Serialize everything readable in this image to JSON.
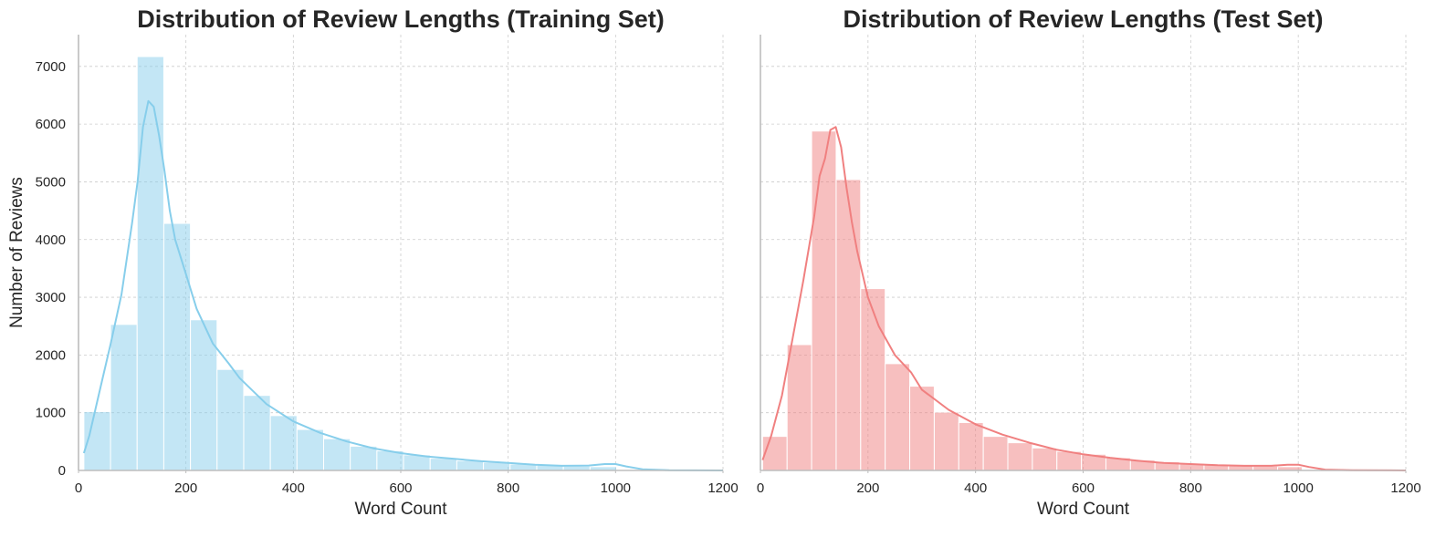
{
  "figure": {
    "panels": [
      {
        "title": "Distribution of Review Lengths (Training Set)",
        "xlabel": "Word Count",
        "ylabel": "Number of Reviews"
      },
      {
        "title": "Distribution of Review Lengths (Test Set)",
        "xlabel": "Word Count",
        "ylabel": ""
      }
    ]
  },
  "chart_data": [
    {
      "type": "bar",
      "subtype": "histogram-with-kde",
      "title": "Distribution of Review Lengths (Training Set)",
      "xlabel": "Word Count",
      "ylabel": "Number of Reviews",
      "xlim": [
        0,
        1200
      ],
      "ylim": [
        0,
        7550
      ],
      "xticks": [
        0,
        200,
        400,
        600,
        800,
        1000,
        1200
      ],
      "yticks": [
        0,
        1000,
        2000,
        3000,
        4000,
        5000,
        6000,
        7000
      ],
      "grid": true,
      "color": "#87ceeb",
      "bin_edges": [
        10,
        59.6,
        109.2,
        158.8,
        208.4,
        258,
        307.6,
        357.2,
        406.8,
        456.4,
        506,
        555.6,
        605.2,
        654.8,
        704.4,
        754,
        803.6,
        853.2,
        902.8,
        952.4,
        1002
      ],
      "values": [
        1020,
        2530,
        7170,
        4280,
        2610,
        1750,
        1300,
        950,
        710,
        550,
        420,
        340,
        270,
        210,
        170,
        140,
        110,
        90,
        75,
        65
      ],
      "kde": {
        "x": [
          10,
          20,
          40,
          60,
          80,
          100,
          110,
          120,
          130,
          140,
          150,
          160,
          170,
          180,
          190,
          200,
          220,
          250,
          280,
          300,
          350,
          400,
          450,
          500,
          550,
          600,
          650,
          700,
          750,
          800,
          850,
          900,
          950,
          980,
          1000,
          1020,
          1050,
          1100,
          1200
        ],
        "y": [
          300,
          600,
          1400,
          2200,
          3050,
          4300,
          5000,
          5950,
          6400,
          6300,
          5800,
          5200,
          4500,
          4000,
          3700,
          3400,
          2800,
          2200,
          1850,
          1600,
          1150,
          850,
          650,
          500,
          380,
          300,
          240,
          200,
          160,
          130,
          100,
          80,
          85,
          110,
          110,
          70,
          20,
          5,
          0
        ]
      }
    },
    {
      "type": "bar",
      "subtype": "histogram-with-kde",
      "title": "Distribution of Review Lengths (Test Set)",
      "xlabel": "Word Count",
      "ylabel": "",
      "xlim": [
        0,
        1200
      ],
      "ylim": [
        0,
        7550
      ],
      "xticks": [
        0,
        200,
        400,
        600,
        800,
        1000,
        1200
      ],
      "yticks": [
        0,
        1000,
        2000,
        3000,
        4000,
        5000,
        6000,
        7000
      ],
      "grid": true,
      "color": "#f08080",
      "bin_edges": [
        4,
        49.6,
        95.2,
        140.8,
        186.4,
        232,
        277.6,
        323.2,
        368.8,
        414.4,
        460,
        505.6,
        551.2,
        596.8,
        642.4,
        688,
        733.6,
        779.2,
        824.8,
        870.4,
        916,
        961.6,
        1007.2
      ],
      "values": [
        590,
        2180,
        5880,
        5040,
        3150,
        1850,
        1460,
        1010,
        830,
        590,
        480,
        390,
        330,
        280,
        220,
        180,
        150,
        120,
        100,
        85,
        75,
        65
      ],
      "kde": {
        "x": [
          4,
          20,
          40,
          60,
          80,
          100,
          110,
          120,
          130,
          140,
          150,
          160,
          170,
          180,
          190,
          200,
          220,
          250,
          280,
          300,
          350,
          400,
          450,
          500,
          550,
          600,
          650,
          700,
          750,
          800,
          850,
          900,
          950,
          980,
          1000,
          1020,
          1050,
          1100,
          1200
        ],
        "y": [
          180,
          600,
          1300,
          2300,
          3300,
          4400,
          5100,
          5400,
          5900,
          5950,
          5600,
          4900,
          4300,
          3800,
          3400,
          3000,
          2500,
          2000,
          1700,
          1400,
          1050,
          800,
          620,
          480,
          360,
          280,
          220,
          170,
          130,
          110,
          90,
          80,
          80,
          100,
          100,
          60,
          15,
          4,
          0
        ]
      }
    }
  ]
}
